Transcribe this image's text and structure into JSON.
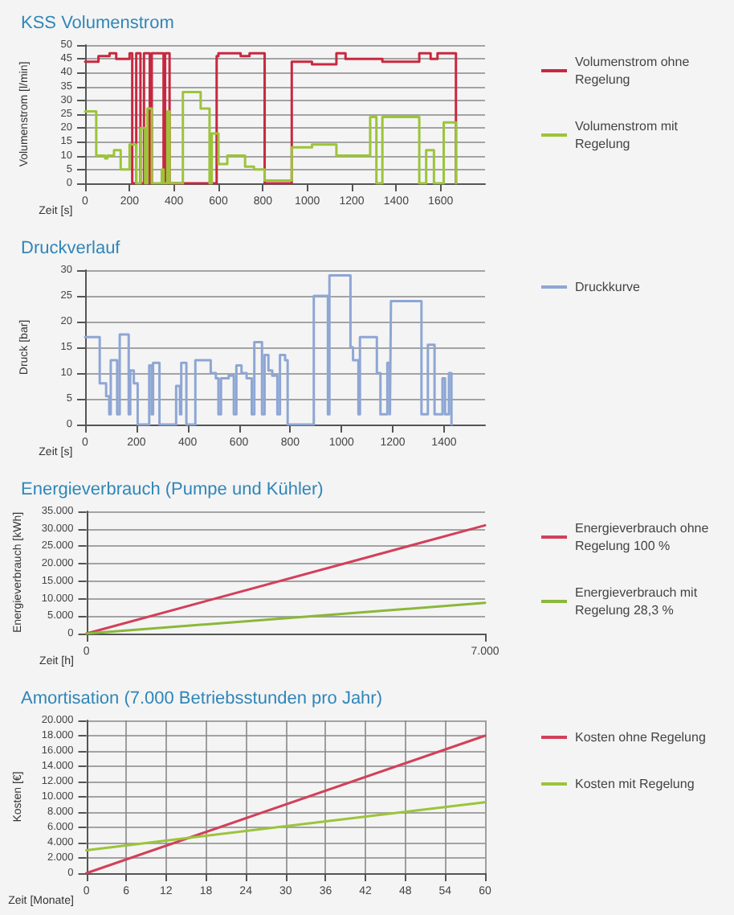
{
  "chart_data": [
    {
      "type": "step",
      "title": "KSS Volumenstrom",
      "xlabel": "Zeit [s]",
      "ylabel": "Volumenstrom [l/min]",
      "xlim": [
        0,
        1800
      ],
      "xticks": [
        0,
        200,
        400,
        600,
        800,
        1000,
        1200,
        1400,
        1600
      ],
      "ylim": [
        0,
        50
      ],
      "yticks": [
        0,
        5,
        10,
        15,
        20,
        25,
        30,
        35,
        40,
        45,
        50
      ],
      "grid": "y",
      "legend": "right",
      "marker": "none",
      "line_style": "solid",
      "series": [
        {
          "name": "Volumenstrom ohne Regelung",
          "color": "#c8283f",
          "x": [
            0,
            60,
            110,
            140,
            200,
            212,
            230,
            249,
            265,
            291,
            300,
            353,
            360,
            380,
            592,
            600,
            700,
            740,
            808,
            930,
            1021,
            1131,
            1172,
            1186,
            1338,
            1504,
            1555,
            1586,
            1669
          ],
          "values": [
            44,
            46,
            47,
            45,
            47,
            0,
            47,
            0,
            47,
            0,
            47,
            0,
            47,
            0,
            46,
            47,
            46,
            47,
            0,
            44,
            43,
            47,
            45,
            45,
            44,
            47,
            45,
            47,
            0
          ]
        },
        {
          "name": "Volumenstrom mit Regelung",
          "color": "#9cc43a",
          "x": [
            0,
            50,
            90,
            100,
            130,
            160,
            200,
            230,
            250,
            270,
            280,
            300,
            345,
            353,
            370,
            380,
            440,
            520,
            560,
            570,
            600,
            640,
            680,
            720,
            760,
            808,
            930,
            1021,
            1131,
            1283,
            1311,
            1338,
            1504,
            1535,
            1570,
            1614,
            1669
          ],
          "values": [
            26,
            10,
            9,
            10,
            12,
            5,
            14,
            0,
            20,
            0,
            27,
            0,
            5,
            0,
            26,
            0,
            33,
            27,
            0,
            18,
            7,
            10,
            10,
            6,
            5,
            1,
            13,
            14,
            10,
            24,
            0,
            24,
            0,
            12,
            0,
            22,
            0
          ]
        }
      ]
    },
    {
      "type": "step",
      "title": "Druckverlauf",
      "xlabel": "Zeit [s]",
      "ylabel": "Druck [bar]",
      "xlim": [
        0,
        1560
      ],
      "xticks": [
        0,
        200,
        400,
        600,
        800,
        1000,
        1200,
        1400
      ],
      "ylim": [
        0,
        30
      ],
      "yticks": [
        0,
        5,
        10,
        15,
        20,
        25,
        30
      ],
      "grid": "y",
      "legend": "right",
      "marker": "none",
      "line_style": "solid",
      "series": [
        {
          "name": "Druckkurve",
          "color": "#8ea6d4",
          "x": [
            0,
            57,
            82,
            94,
            100,
            125,
            135,
            170,
            176,
            190,
            205,
            250,
            260,
            265,
            290,
            355,
            370,
            375,
            395,
            430,
            490,
            510,
            520,
            530,
            560,
            580,
            590,
            610,
            630,
            650,
            660,
            690,
            700,
            715,
            730,
            750,
            760,
            780,
            790,
            892,
            947,
            953,
            1035,
            1045,
            1066,
            1072,
            1138,
            1152,
            1179,
            1189,
            1193,
            1312,
            1337,
            1363,
            1394,
            1404,
            1419,
            1429
          ],
          "values": [
            17,
            8,
            5.5,
            2,
            12.5,
            2,
            17.5,
            2,
            10.5,
            8,
            0,
            11.5,
            2,
            12,
            0,
            7.5,
            2,
            12,
            0,
            12.5,
            10,
            9,
            2,
            9,
            9.5,
            2,
            11.5,
            10,
            9,
            2,
            16,
            2,
            13.5,
            10.5,
            9.5,
            2,
            13.5,
            12.5,
            0,
            25,
            2,
            29,
            15,
            12.5,
            2,
            17,
            10,
            2,
            12,
            2,
            24,
            2,
            15.5,
            2,
            9,
            2,
            10,
            0
          ]
        }
      ]
    },
    {
      "type": "line",
      "title": "Energieverbrauch (Pumpe und Kühler)",
      "xlabel": "Zeit [h]",
      "ylabel": "Energieverbrauch [kWh]",
      "xlim": [
        0,
        7000
      ],
      "xticks": [
        0,
        {
          "value": 7000,
          "label": "7.000"
        }
      ],
      "ylim": [
        0,
        35000
      ],
      "yticks": [
        0,
        {
          "value": 5000,
          "label": "5.000"
        },
        {
          "value": 10000,
          "label": "10.000"
        },
        {
          "value": 15000,
          "label": "15.000"
        },
        {
          "value": 20000,
          "label": "20.000"
        },
        {
          "value": 25000,
          "label": "25.000"
        },
        {
          "value": 30000,
          "label": "30.000"
        },
        {
          "value": 35000,
          "label": "35.000"
        }
      ],
      "grid": "y",
      "legend": "right",
      "marker": "none",
      "line_style": "solid",
      "series": [
        {
          "name": "Energieverbrauch ohne Regelung 100 %",
          "color": "#d2405a",
          "x": [
            0,
            7000
          ],
          "values": [
            0,
            31000
          ]
        },
        {
          "name": "Energieverbrauch mit Regelung 28,3 %",
          "color": "#8ab83a",
          "x": [
            0,
            7000
          ],
          "values": [
            0,
            8800
          ]
        }
      ]
    },
    {
      "type": "line",
      "title": "Amortisation (7.000 Betriebsstunden pro Jahr)",
      "xlabel": "Zeit [Monate]",
      "ylabel": "Kosten [€]",
      "xlim": [
        0,
        60
      ],
      "xticks": [
        0,
        6,
        12,
        18,
        24,
        30,
        36,
        42,
        48,
        54,
        60
      ],
      "ylim": [
        0,
        20000
      ],
      "yticks": [
        0,
        {
          "value": 2000,
          "label": "2.000"
        },
        {
          "value": 4000,
          "label": "4.000"
        },
        {
          "value": 6000,
          "label": "6.000"
        },
        {
          "value": 8000,
          "label": "8.000"
        },
        {
          "value": 10000,
          "label": "10.000"
        },
        {
          "value": 12000,
          "label": "12.000"
        },
        {
          "value": 14000,
          "label": "14.000"
        },
        {
          "value": 16000,
          "label": "16.000"
        },
        {
          "value": 18000,
          "label": "18.000"
        },
        {
          "value": 20000,
          "label": "20.000"
        }
      ],
      "grid": true,
      "legend": "right",
      "marker": "none",
      "line_style": "solid",
      "series": [
        {
          "name": "Kosten ohne Regelung",
          "color": "#d2405a",
          "x": [
            0,
            60
          ],
          "values": [
            0,
            18000
          ]
        },
        {
          "name": "Kosten mit Regelung",
          "color": "#9cc43a",
          "x": [
            0,
            60
          ],
          "values": [
            3000,
            9300
          ]
        }
      ]
    }
  ]
}
